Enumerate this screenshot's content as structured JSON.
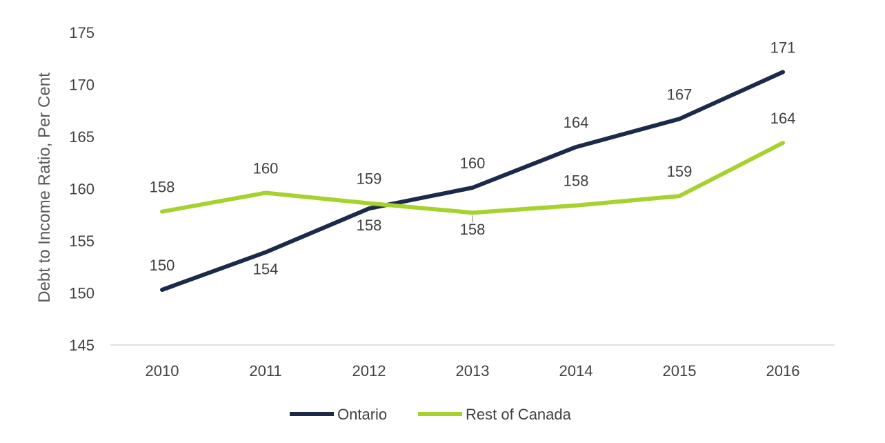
{
  "chart_data": {
    "type": "line",
    "title": "",
    "xlabel": "",
    "ylabel": "Debt to Income Ratio, Per Cent",
    "categories": [
      "2010",
      "2011",
      "2012",
      "2013",
      "2014",
      "2015",
      "2016"
    ],
    "ylim": [
      145,
      175
    ],
    "yticks": [
      145,
      150,
      155,
      160,
      165,
      170,
      175
    ],
    "grid": false,
    "legend_position": "bottom",
    "series": [
      {
        "name": "Ontario",
        "color": "#1c2a4a",
        "values": [
          150.3,
          153.9,
          158.1,
          160.1,
          164.0,
          166.7,
          171.2
        ],
        "labels": [
          "150",
          "154",
          "158",
          "160",
          "164",
          "167",
          "171"
        ],
        "label_position": [
          "above",
          "below",
          "below",
          "above",
          "above",
          "above",
          "above"
        ]
      },
      {
        "name": "Rest of Canada",
        "color": "#a6d22e",
        "values": [
          157.8,
          159.6,
          158.6,
          157.7,
          158.4,
          159.3,
          164.4
        ],
        "labels": [
          "158",
          "160",
          "159",
          "158",
          "158",
          "159",
          "164"
        ],
        "label_position": [
          "above",
          "above",
          "above",
          "below",
          "above",
          "above",
          "above"
        ]
      }
    ]
  }
}
